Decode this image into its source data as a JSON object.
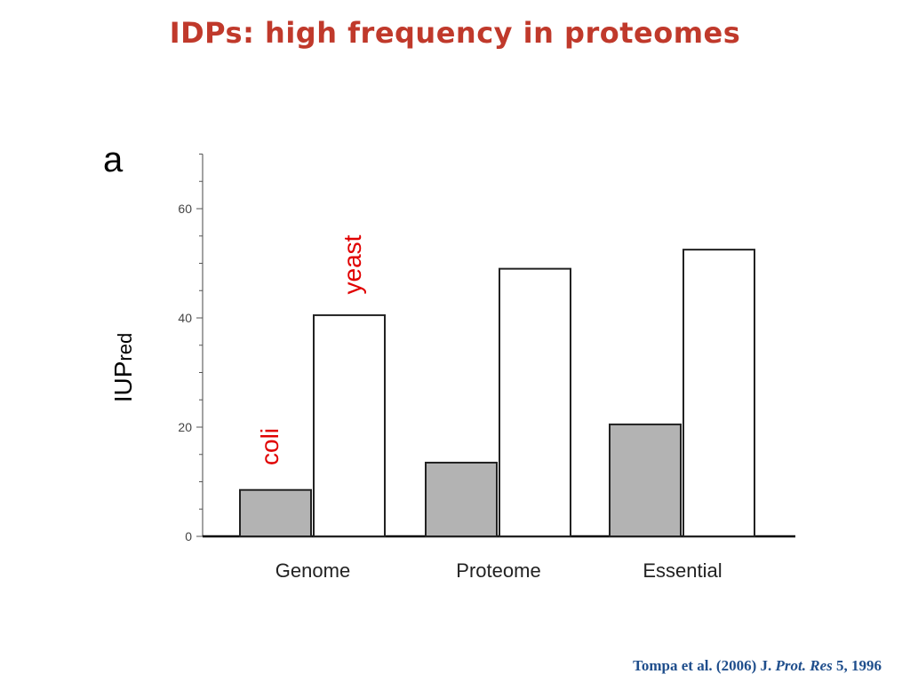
{
  "slide": {
    "title": "IDPs: high frequency in proteomes"
  },
  "citation": {
    "authors_year": "Tompa et al. (2006) J. ",
    "journal": "Prot. Res",
    "volume_pages": " 5, 1996"
  },
  "chart_data": {
    "type": "bar",
    "panel_label": "a",
    "categories": [
      "Genome",
      "Proteome",
      "Essential"
    ],
    "series": [
      {
        "name": "coli",
        "values": [
          8.5,
          13.5,
          20.5
        ],
        "color": "#b3b3b3",
        "label_color": "#e00000"
      },
      {
        "name": "yeast",
        "values": [
          40.5,
          49,
          52.5
        ],
        "color": "#ffffff",
        "label_color": "#e00000"
      }
    ],
    "ylabel_main": "IUP",
    "ylabel_sub": "red",
    "xlabel": "",
    "ylim": [
      0,
      70
    ],
    "yticks": [
      0,
      20,
      40,
      60
    ],
    "grid": false
  }
}
